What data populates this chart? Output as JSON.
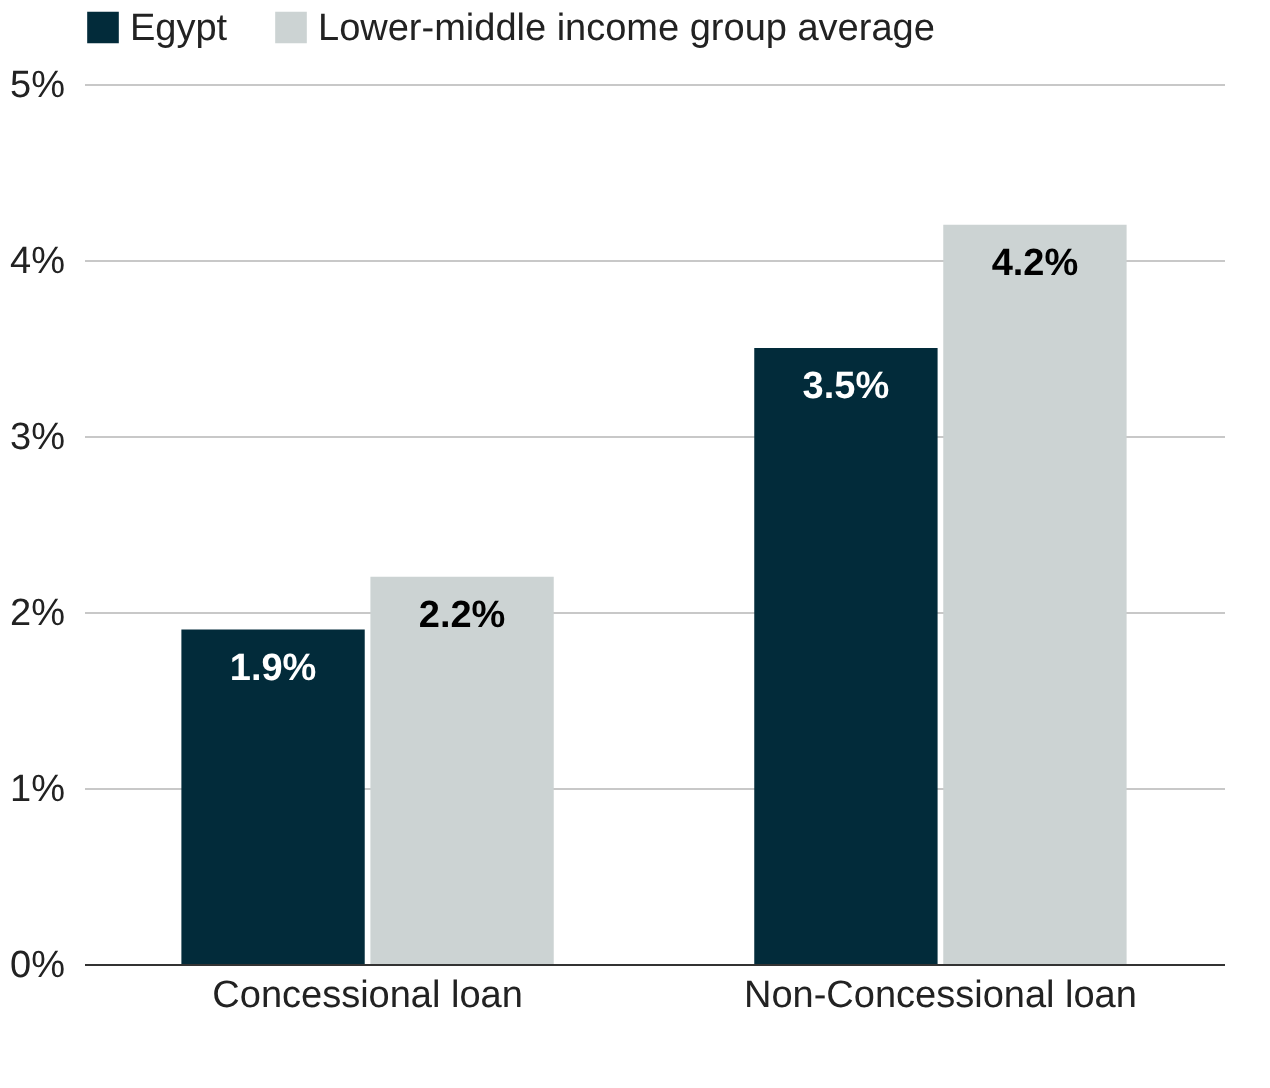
{
  "chart_data": {
    "type": "bar",
    "categories": [
      "Concessional loan",
      "Non-Concessional loan"
    ],
    "series": [
      {
        "name": "Egypt",
        "color": "#022b3a",
        "values": [
          1.9,
          3.5
        ],
        "value_labels": [
          "1.9%",
          "3.5%"
        ]
      },
      {
        "name": "Lower-middle income group average",
        "color": "#ccd3d3",
        "values": [
          2.2,
          4.2
        ],
        "value_labels": [
          "2.2%",
          "4.2%"
        ]
      }
    ],
    "ylim": [
      0,
      5
    ],
    "yticks": [
      {
        "value": 0,
        "label": "0%"
      },
      {
        "value": 1,
        "label": "1%"
      },
      {
        "value": 2,
        "label": "2%"
      },
      {
        "value": 3,
        "label": "3%"
      },
      {
        "value": 4,
        "label": "4%"
      },
      {
        "value": 5,
        "label": "5%"
      }
    ],
    "grid": "y",
    "legend": "top"
  }
}
